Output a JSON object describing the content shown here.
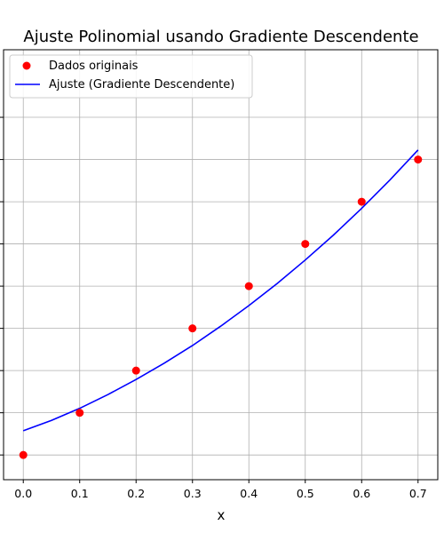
{
  "chart_data": {
    "type": "scatter",
    "title": "Ajuste Polinomial usando Gradiente Descendente",
    "xlabel": "x",
    "ylabel": "",
    "xlim": [
      -0.035,
      0.735
    ],
    "ylim": [
      0.0,
      1.0
    ],
    "grid": true,
    "legend_position": "top-left",
    "x_ticks": [
      0.0,
      0.1,
      0.2,
      0.3,
      0.4,
      0.5,
      0.6,
      0.7
    ],
    "x_tick_labels": [
      "0.0",
      "0.1",
      "0.2",
      "0.3",
      "0.4",
      "0.5",
      "0.6",
      "0.7"
    ],
    "y_ticks": [
      0.0575,
      0.1557,
      0.2538,
      0.352,
      0.4502,
      0.5484,
      0.6465,
      0.7447,
      0.8429
    ],
    "y_tick_labels_visible": false,
    "series": [
      {
        "name": "Dados originais",
        "type": "scatter",
        "color": "#ff0000",
        "x": [
          0.0,
          0.1,
          0.2,
          0.3,
          0.4,
          0.5,
          0.6,
          0.7
        ],
        "y": [
          0.0575,
          0.1557,
          0.2538,
          0.352,
          0.4502,
          0.5484,
          0.6465,
          0.7447
        ]
      },
      {
        "name": "Ajuste (Gradiente Descendente)",
        "type": "line",
        "color": "#0000ff",
        "x": [
          0.0,
          0.05,
          0.1,
          0.15,
          0.2,
          0.25,
          0.3,
          0.35,
          0.4,
          0.45,
          0.5,
          0.55,
          0.6,
          0.65,
          0.7
        ],
        "y": [
          0.114,
          0.138,
          0.166,
          0.198,
          0.233,
          0.271,
          0.312,
          0.357,
          0.405,
          0.456,
          0.511,
          0.569,
          0.631,
          0.697,
          0.767
        ]
      }
    ]
  }
}
